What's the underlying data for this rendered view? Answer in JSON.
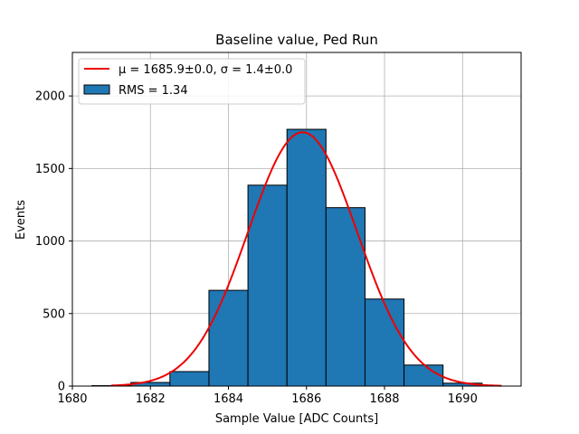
{
  "chart_data": {
    "type": "bar",
    "title": "Baseline value, Ped Run",
    "xlabel": "Sample Value [ADC Counts]",
    "ylabel": "Events",
    "xlim": [
      1680,
      1691.5
    ],
    "ylim": [
      0,
      2300
    ],
    "xticks": [
      1680,
      1682,
      1684,
      1686,
      1688,
      1690
    ],
    "yticks": [
      0,
      500,
      1000,
      1500,
      2000
    ],
    "grid": true,
    "legend_position": "top-left",
    "bin_width": 1,
    "bins": [
      {
        "center": 1681,
        "value": 3
      },
      {
        "center": 1682,
        "value": 25
      },
      {
        "center": 1683,
        "value": 100
      },
      {
        "center": 1684,
        "value": 660
      },
      {
        "center": 1685,
        "value": 1385
      },
      {
        "center": 1686,
        "value": 1770
      },
      {
        "center": 1687,
        "value": 1230
      },
      {
        "center": 1688,
        "value": 600
      },
      {
        "center": 1689,
        "value": 145
      },
      {
        "center": 1690,
        "value": 20
      }
    ],
    "fit": {
      "type": "gaussian",
      "mu": 1685.9,
      "sigma": 1.4,
      "peak": 1750,
      "x_range": [
        1681,
        1691
      ],
      "label_mu": "μ = 1685.9±0.0",
      "label_sigma": "σ = 1.4±0.0"
    },
    "legend": [
      {
        "kind": "line",
        "label_mu": "μ = 1685.9±0.0",
        "label_sigma": "σ = 1.4±0.0"
      },
      {
        "kind": "bar",
        "label": "RMS = 1.34"
      }
    ],
    "colors": {
      "bar_fill": "#1f77b4",
      "bar_edge": "#000000",
      "fit_line": "#ee0000",
      "grid": "#b0b0b0",
      "legend_edge": "#cccccc"
    }
  }
}
